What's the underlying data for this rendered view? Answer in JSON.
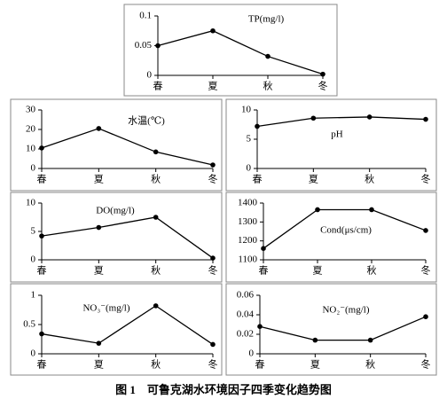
{
  "caption": "图 1　可鲁克湖水环境因子四季变化趋势图",
  "chart_data": [
    {
      "type": "line",
      "title": "TP(mg/l)",
      "categories": [
        "春",
        "夏",
        "秋",
        "冬"
      ],
      "values": [
        0.05,
        0.075,
        0.032,
        0.002
      ],
      "color": "#000000",
      "ylim": [
        0,
        0.1
      ],
      "yticks": [
        0,
        0.05,
        0.1
      ]
    },
    {
      "type": "line",
      "title": "水温(℃)",
      "categories": [
        "春",
        "夏",
        "秋",
        "冬"
      ],
      "values": [
        10.5,
        20.5,
        8.5,
        1.8
      ],
      "color": "#000000",
      "ylim": [
        0,
        30
      ],
      "yticks": [
        0,
        10,
        20,
        30
      ]
    },
    {
      "type": "line",
      "title": "pH",
      "categories": [
        "春",
        "夏",
        "秋",
        "冬"
      ],
      "values": [
        7.2,
        8.6,
        8.8,
        8.4
      ],
      "color": "#000000",
      "ylim": [
        0,
        10
      ],
      "yticks": [
        0,
        5,
        10
      ]
    },
    {
      "type": "line",
      "title": "DO(mg/l)",
      "categories": [
        "春",
        "夏",
        "秋",
        "冬"
      ],
      "values": [
        4.2,
        5.7,
        7.5,
        0.3
      ],
      "color": "#000000",
      "ylim": [
        0,
        10
      ],
      "yticks": [
        0,
        5,
        10
      ]
    },
    {
      "type": "line",
      "title": "Cond(μs/cm)",
      "categories": [
        "春",
        "夏",
        "秋",
        "冬"
      ],
      "values": [
        1160,
        1365,
        1365,
        1255
      ],
      "color": "#000000",
      "ylim": [
        1100,
        1400
      ],
      "yticks": [
        1100,
        1200,
        1300,
        1400
      ]
    },
    {
      "type": "line",
      "title": "NO₃⁻(mg/l)",
      "categories": [
        "春",
        "夏",
        "秋",
        "冬"
      ],
      "values": [
        0.34,
        0.18,
        0.82,
        0.16
      ],
      "color": "#000000",
      "ylim": [
        0,
        1
      ],
      "yticks": [
        0,
        0.5,
        1
      ]
    },
    {
      "type": "line",
      "title": "NO₂⁻(mg/l)",
      "categories": [
        "春",
        "夏",
        "秋",
        "冬"
      ],
      "values": [
        0.028,
        0.014,
        0.014,
        0.038
      ],
      "color": "#000000",
      "ylim": [
        0,
        0.06
      ],
      "yticks": [
        0,
        0.02,
        0.04,
        0.06
      ]
    }
  ]
}
